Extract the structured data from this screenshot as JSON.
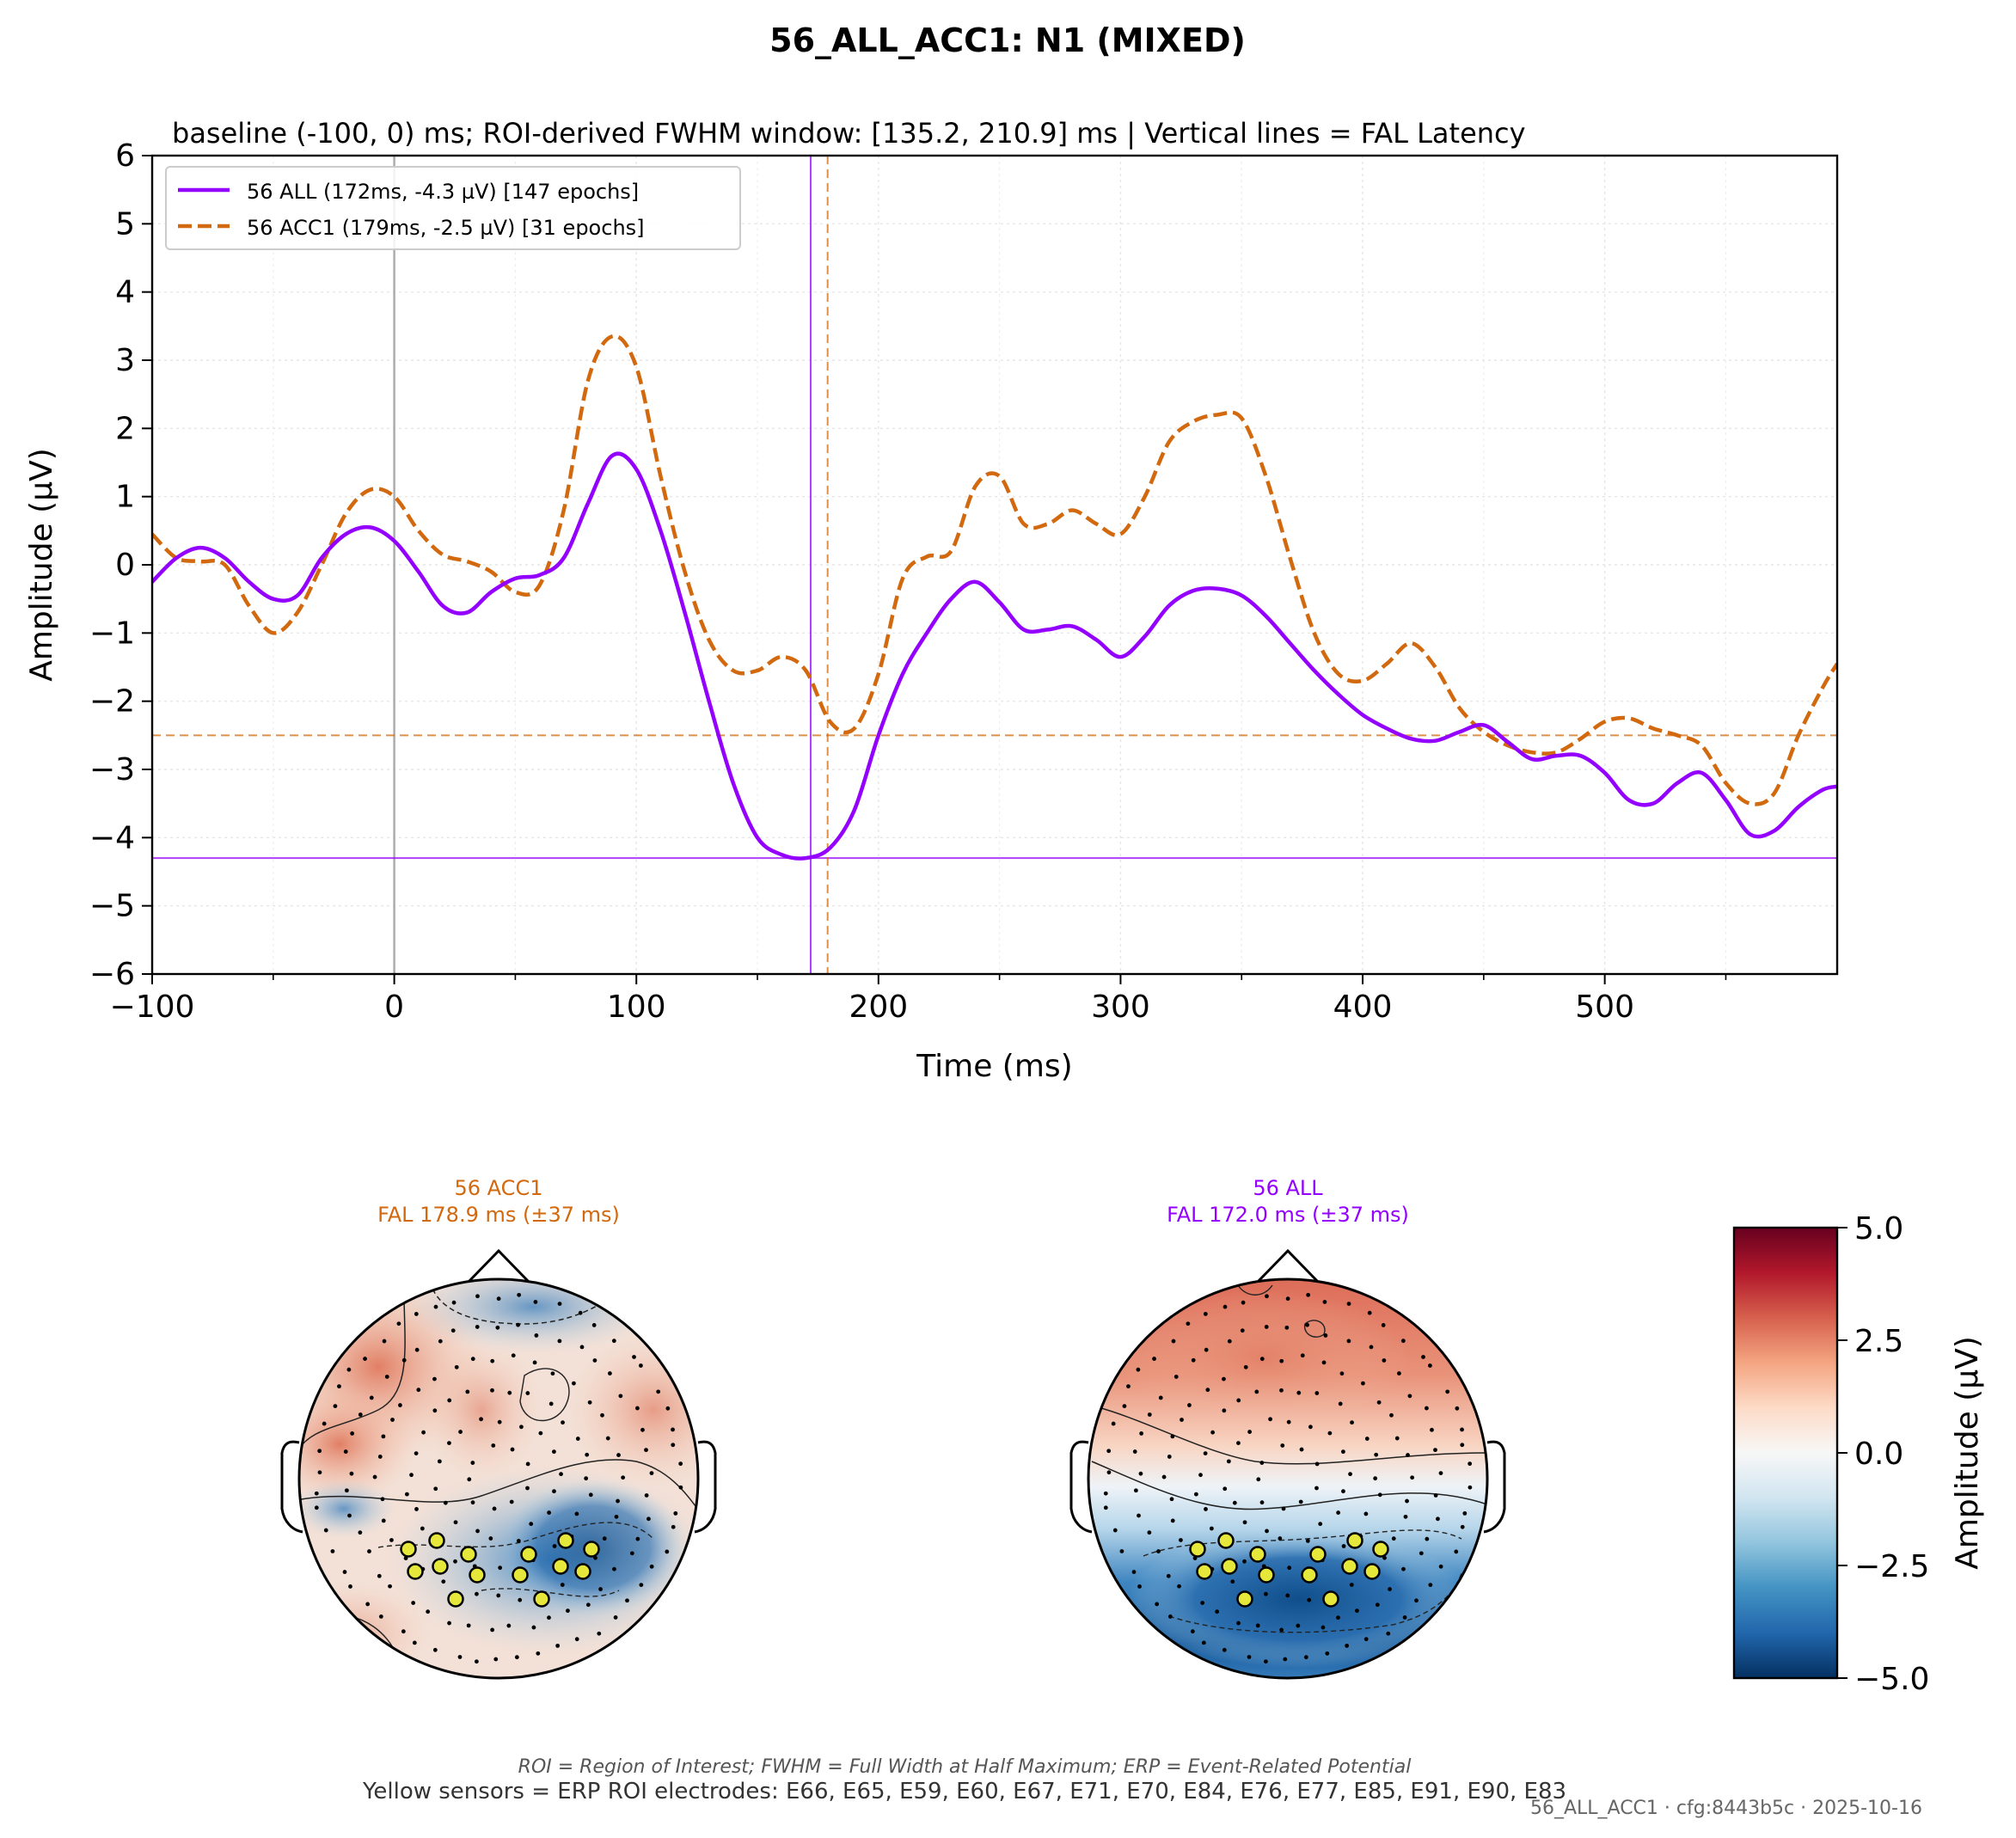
{
  "figure": {
    "suptitle": "56_ALL_ACC1: N1 (MIXED)",
    "footer_note": "ROI = Region of Interest; FWHM = Full Width at Half Maximum; ERP = Event-Related Potential",
    "footer_roi": "Yellow sensors = ERP ROI electrodes: E66, E65, E59, E60, E67, E71, E70, E84, E76, E77, E85, E91, E90, E83",
    "footer_stamp": "56_ALL_ACC1 · cfg:8443b5c · 2025-10-16"
  },
  "chart_data": [
    {
      "type": "line",
      "title": "baseline (-100, 0) ms; ROI-derived FWHM window: [135.2, 210.9] ms | Vertical lines = FAL Latency",
      "xlabel": "Time (ms)",
      "ylabel": "Amplitude (µV)",
      "xlim": [
        -100,
        596
      ],
      "ylim": [
        -6,
        6
      ],
      "xticks": [
        -100,
        0,
        100,
        200,
        300,
        400,
        500
      ],
      "xtick_labels": [
        "−100",
        "0",
        "100",
        "200",
        "300",
        "400",
        "500"
      ],
      "yticks": [
        -6,
        -5,
        -4,
        -3,
        -2,
        -1,
        0,
        1,
        2,
        3,
        4,
        5,
        6
      ],
      "ytick_labels": [
        "−6",
        "−5",
        "−4",
        "−3",
        "−2",
        "−1",
        "0",
        "1",
        "2",
        "3",
        "4",
        "5",
        "6"
      ],
      "grid": true,
      "legend_position": "top-left",
      "zero_line_x": 0,
      "series": [
        {
          "name": "56 ALL (172ms, -4.3 µV) [147 epochs]",
          "color": "#9400ff",
          "style": "solid",
          "latency": 172,
          "peak": -4.3,
          "x": [
            -100,
            -90,
            -80,
            -70,
            -60,
            -50,
            -40,
            -30,
            -20,
            -10,
            0,
            10,
            20,
            30,
            40,
            50,
            60,
            70,
            80,
            90,
            100,
            110,
            120,
            130,
            140,
            150,
            160,
            170,
            180,
            190,
            200,
            210,
            220,
            230,
            240,
            250,
            260,
            270,
            280,
            290,
            300,
            310,
            320,
            330,
            340,
            350,
            360,
            370,
            380,
            390,
            400,
            410,
            420,
            430,
            440,
            450,
            460,
            470,
            480,
            490,
            500,
            510,
            520,
            530,
            540,
            550,
            560,
            570,
            580,
            590,
            596
          ],
          "y": [
            -0.25,
            0.1,
            0.25,
            0.1,
            -0.25,
            -0.5,
            -0.45,
            0.1,
            0.45,
            0.55,
            0.35,
            -0.1,
            -0.6,
            -0.7,
            -0.4,
            -0.2,
            -0.15,
            0.1,
            0.9,
            1.6,
            1.4,
            0.5,
            -0.7,
            -2.0,
            -3.2,
            -4.0,
            -4.25,
            -4.3,
            -4.15,
            -3.6,
            -2.5,
            -1.6,
            -1.0,
            -0.5,
            -0.25,
            -0.55,
            -0.95,
            -0.95,
            -0.9,
            -1.1,
            -1.35,
            -1.05,
            -0.6,
            -0.38,
            -0.35,
            -0.45,
            -0.75,
            -1.15,
            -1.55,
            -1.9,
            -2.2,
            -2.4,
            -2.55,
            -2.58,
            -2.45,
            -2.35,
            -2.6,
            -2.85,
            -2.8,
            -2.8,
            -3.05,
            -3.45,
            -3.5,
            -3.2,
            -3.05,
            -3.45,
            -3.95,
            -3.9,
            -3.55,
            -3.3,
            -3.25
          ]
        },
        {
          "name": "56 ACC1 (179ms, -2.5 µV) [31 epochs]",
          "color": "#d2690e",
          "style": "dashed",
          "latency": 179,
          "peak": -2.5,
          "x": [
            -100,
            -90,
            -80,
            -70,
            -60,
            -50,
            -40,
            -30,
            -20,
            -10,
            0,
            10,
            20,
            30,
            40,
            50,
            60,
            70,
            80,
            90,
            100,
            110,
            120,
            130,
            140,
            150,
            160,
            170,
            180,
            190,
            200,
            210,
            220,
            230,
            240,
            250,
            260,
            270,
            280,
            290,
            300,
            310,
            320,
            330,
            340,
            350,
            360,
            370,
            380,
            390,
            400,
            410,
            420,
            430,
            440,
            450,
            460,
            470,
            480,
            490,
            500,
            510,
            520,
            530,
            540,
            550,
            560,
            570,
            580,
            590,
            596
          ],
          "y": [
            0.45,
            0.1,
            0.05,
            0.0,
            -0.6,
            -1.0,
            -0.7,
            0.0,
            0.75,
            1.1,
            1.0,
            0.5,
            0.15,
            0.05,
            -0.1,
            -0.4,
            -0.3,
            0.8,
            2.7,
            3.35,
            2.9,
            1.3,
            -0.1,
            -1.1,
            -1.55,
            -1.55,
            -1.35,
            -1.55,
            -2.3,
            -2.4,
            -1.6,
            -0.2,
            0.12,
            0.2,
            1.15,
            1.3,
            0.6,
            0.6,
            0.8,
            0.6,
            0.45,
            1.0,
            1.8,
            2.1,
            2.2,
            2.15,
            1.3,
            0.1,
            -1.0,
            -1.6,
            -1.7,
            -1.45,
            -1.15,
            -1.5,
            -2.1,
            -2.45,
            -2.65,
            -2.75,
            -2.75,
            -2.55,
            -2.3,
            -2.25,
            -2.4,
            -2.5,
            -2.65,
            -3.2,
            -3.5,
            -3.35,
            -2.5,
            -1.8,
            -1.45
          ]
        }
      ]
    },
    {
      "type": "heatmap",
      "name": "topomaps",
      "colorbar": {
        "label": "Amplitude (µV)",
        "range": [
          -5,
          5
        ],
        "ticks": [
          -5,
          -2.5,
          0,
          2.5,
          5
        ],
        "tick_labels": [
          "−5.0",
          "−2.5",
          "0.0",
          "2.5",
          "5.0"
        ]
      },
      "maps": [
        {
          "title": "56 ACC1",
          "subtitle": "FAL 178.9 ms (±37 ms)",
          "color": "#d2690e"
        },
        {
          "title": "56 ALL",
          "subtitle": "FAL 172.0 ms (±37 ms)",
          "color": "#9400ff"
        }
      ]
    }
  ]
}
